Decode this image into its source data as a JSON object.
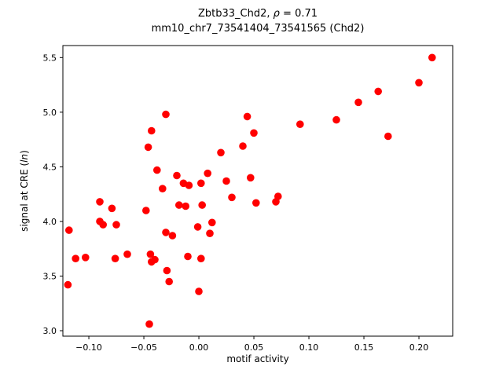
{
  "title1": {
    "prefix": "Zbtb33_Chd2, ",
    "rho": "ρ",
    "suffix": " = 0.71"
  },
  "title2": "mm10_chr7_73541404_73541565 (Chd2)",
  "chart_data": {
    "type": "scatter",
    "title": "Zbtb33_Chd2, ρ = 0.71 — mm10_chr7_73541404_73541565 (Chd2)",
    "xlabel": "motif activity",
    "ylabel_parts": {
      "prefix": "signal at CRE (",
      "italic": "ln",
      "suffix": ")"
    },
    "xlim": [
      -0.1236,
      0.2307
    ],
    "ylim": [
      2.95,
      5.61
    ],
    "grid": false,
    "legend": "none",
    "marker_color": "#ff0000",
    "frame_color": "#000000",
    "x_ticks": [
      -0.1,
      -0.05,
      0.0,
      0.05,
      0.1,
      0.15,
      0.2
    ],
    "x_tick_labels": [
      "−0.10",
      "−0.05",
      "0.00",
      "0.05",
      "0.10",
      "0.15",
      "0.20"
    ],
    "y_ticks": [
      3.0,
      3.5,
      4.0,
      4.5,
      5.0,
      5.5
    ],
    "y_tick_labels": [
      "3.0",
      "3.5",
      "4.0",
      "4.5",
      "5.0",
      "5.5"
    ],
    "points": [
      [
        -0.118,
        3.92
      ],
      [
        -0.119,
        3.42
      ],
      [
        -0.112,
        3.66
      ],
      [
        -0.103,
        3.67
      ],
      [
        -0.09,
        4.18
      ],
      [
        -0.09,
        4.0
      ],
      [
        -0.087,
        3.97
      ],
      [
        -0.079,
        4.12
      ],
      [
        -0.075,
        3.97
      ],
      [
        -0.076,
        3.66
      ],
      [
        -0.065,
        3.7
      ],
      [
        -0.048,
        4.1
      ],
      [
        -0.046,
        4.68
      ],
      [
        -0.043,
        4.83
      ],
      [
        -0.044,
        3.7
      ],
      [
        -0.043,
        3.63
      ],
      [
        -0.045,
        3.06
      ],
      [
        -0.04,
        3.65
      ],
      [
        -0.038,
        4.47
      ],
      [
        -0.033,
        4.3
      ],
      [
        -0.03,
        4.98
      ],
      [
        -0.03,
        3.9
      ],
      [
        -0.029,
        3.55
      ],
      [
        -0.027,
        3.45
      ],
      [
        -0.024,
        3.87
      ],
      [
        -0.02,
        4.42
      ],
      [
        -0.018,
        4.15
      ],
      [
        -0.014,
        4.35
      ],
      [
        -0.012,
        4.14
      ],
      [
        -0.009,
        4.33
      ],
      [
        -0.01,
        3.68
      ],
      [
        -0.001,
        3.95
      ],
      [
        0.002,
        4.35
      ],
      [
        0.003,
        4.15
      ],
      [
        0.002,
        3.66
      ],
      [
        0.0,
        3.36
      ],
      [
        0.008,
        4.44
      ],
      [
        0.01,
        3.89
      ],
      [
        0.012,
        3.99
      ],
      [
        0.02,
        4.63
      ],
      [
        0.025,
        4.37
      ],
      [
        0.03,
        4.22
      ],
      [
        0.04,
        4.69
      ],
      [
        0.044,
        4.96
      ],
      [
        0.047,
        4.4
      ],
      [
        0.05,
        4.81
      ],
      [
        0.052,
        4.17
      ],
      [
        0.07,
        4.18
      ],
      [
        0.072,
        4.23
      ],
      [
        0.092,
        4.89
      ],
      [
        0.125,
        4.93
      ],
      [
        0.145,
        5.09
      ],
      [
        0.163,
        5.19
      ],
      [
        0.172,
        4.78
      ],
      [
        0.2,
        5.27
      ],
      [
        0.212,
        5.5
      ]
    ]
  }
}
